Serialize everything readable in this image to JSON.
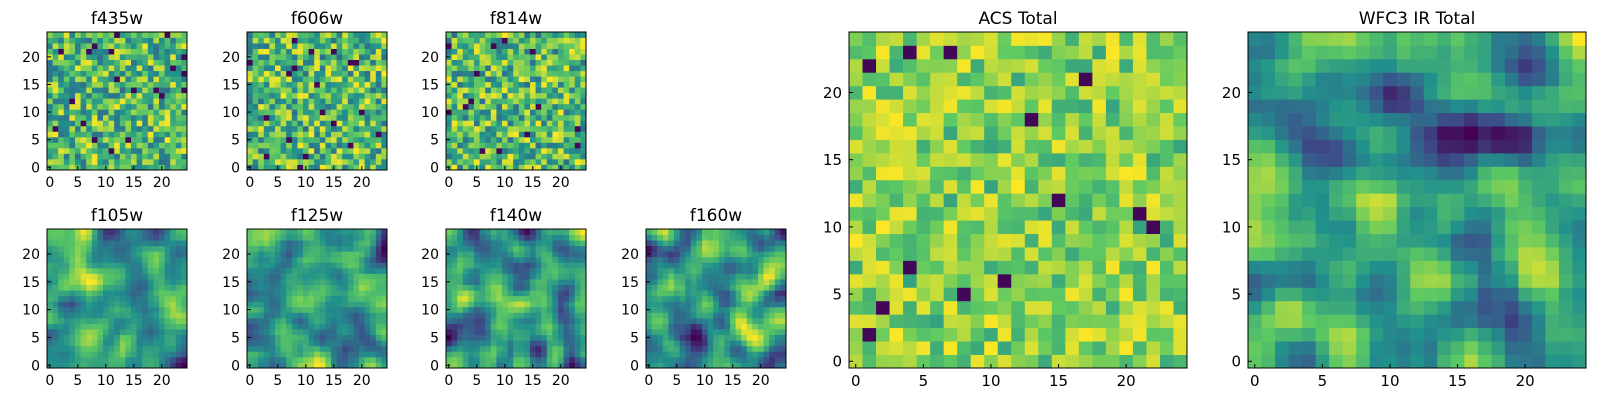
{
  "figure": {
    "colormap": [
      "#440154",
      "#3b528b",
      "#21918c",
      "#5ec962",
      "#fde725"
    ],
    "background": "#ffffff"
  },
  "chart_data": [
    {
      "type": "heatmap",
      "title": "f435w",
      "xlabel": "",
      "ylabel": "",
      "xlim": [
        -0.5,
        24.5
      ],
      "ylim": [
        -0.5,
        24.5
      ],
      "xticks": [
        0,
        5,
        10,
        15,
        20
      ],
      "yticks": [
        0,
        5,
        10,
        15,
        20
      ],
      "grid_shape": [
        25,
        25
      ],
      "colormap": "viridis",
      "pattern": "noise",
      "seed": 11
    },
    {
      "type": "heatmap",
      "title": "f606w",
      "xlabel": "",
      "ylabel": "",
      "xlim": [
        -0.5,
        24.5
      ],
      "ylim": [
        -0.5,
        24.5
      ],
      "xticks": [
        0,
        5,
        10,
        15,
        20
      ],
      "yticks": [
        0,
        5,
        10,
        15,
        20
      ],
      "grid_shape": [
        25,
        25
      ],
      "colormap": "viridis",
      "pattern": "noise",
      "seed": 23
    },
    {
      "type": "heatmap",
      "title": "f814w",
      "xlabel": "",
      "ylabel": "",
      "xlim": [
        -0.5,
        24.5
      ],
      "ylim": [
        -0.5,
        24.5
      ],
      "xticks": [
        0,
        5,
        10,
        15,
        20
      ],
      "yticks": [
        0,
        5,
        10,
        15,
        20
      ],
      "grid_shape": [
        25,
        25
      ],
      "colormap": "viridis",
      "pattern": "noise",
      "seed": 37
    },
    {
      "type": "heatmap",
      "title": "f105w",
      "xlabel": "",
      "ylabel": "",
      "xlim": [
        -0.5,
        24.5
      ],
      "ylim": [
        -0.5,
        24.5
      ],
      "xticks": [
        0,
        5,
        10,
        15,
        20
      ],
      "yticks": [
        0,
        5,
        10,
        15,
        20
      ],
      "grid_shape": [
        25,
        25
      ],
      "colormap": "viridis",
      "pattern": "smooth",
      "seed": 41
    },
    {
      "type": "heatmap",
      "title": "f125w",
      "xlabel": "",
      "ylabel": "",
      "xlim": [
        -0.5,
        24.5
      ],
      "ylim": [
        -0.5,
        24.5
      ],
      "xticks": [
        0,
        5,
        10,
        15,
        20
      ],
      "yticks": [
        0,
        5,
        10,
        15,
        20
      ],
      "grid_shape": [
        25,
        25
      ],
      "colormap": "viridis",
      "pattern": "smooth",
      "seed": 53
    },
    {
      "type": "heatmap",
      "title": "f140w",
      "xlabel": "",
      "ylabel": "",
      "xlim": [
        -0.5,
        24.5
      ],
      "ylim": [
        -0.5,
        24.5
      ],
      "xticks": [
        0,
        5,
        10,
        15,
        20
      ],
      "yticks": [
        0,
        5,
        10,
        15,
        20
      ],
      "grid_shape": [
        25,
        25
      ],
      "colormap": "viridis",
      "pattern": "smooth",
      "seed": 67
    },
    {
      "type": "heatmap",
      "title": "f160w",
      "xlabel": "",
      "ylabel": "",
      "xlim": [
        -0.5,
        24.5
      ],
      "ylim": [
        -0.5,
        24.5
      ],
      "xticks": [
        0,
        5,
        10,
        15,
        20
      ],
      "yticks": [
        0,
        5,
        10,
        15,
        20
      ],
      "grid_shape": [
        25,
        25
      ],
      "colormap": "viridis",
      "pattern": "smooth",
      "seed": 79
    },
    {
      "type": "heatmap",
      "title": "ACS Total",
      "xlabel": "",
      "ylabel": "",
      "xlim": [
        -0.5,
        24.5
      ],
      "ylim": [
        -0.5,
        24.5
      ],
      "xticks": [
        0,
        5,
        10,
        15,
        20
      ],
      "yticks": [
        0,
        5,
        10,
        15,
        20
      ],
      "grid_shape": [
        25,
        25
      ],
      "colormap": "viridis",
      "pattern": "bright-noise",
      "seed": 83
    },
    {
      "type": "heatmap",
      "title": "WFC3 IR Total",
      "xlabel": "",
      "ylabel": "",
      "xlim": [
        -0.5,
        24.5
      ],
      "ylim": [
        -0.5,
        24.5
      ],
      "xticks": [
        0,
        5,
        10,
        15,
        20
      ],
      "yticks": [
        0,
        5,
        10,
        15,
        20
      ],
      "grid_shape": [
        25,
        25
      ],
      "colormap": "viridis",
      "pattern": "smooth",
      "seed": 97
    }
  ]
}
